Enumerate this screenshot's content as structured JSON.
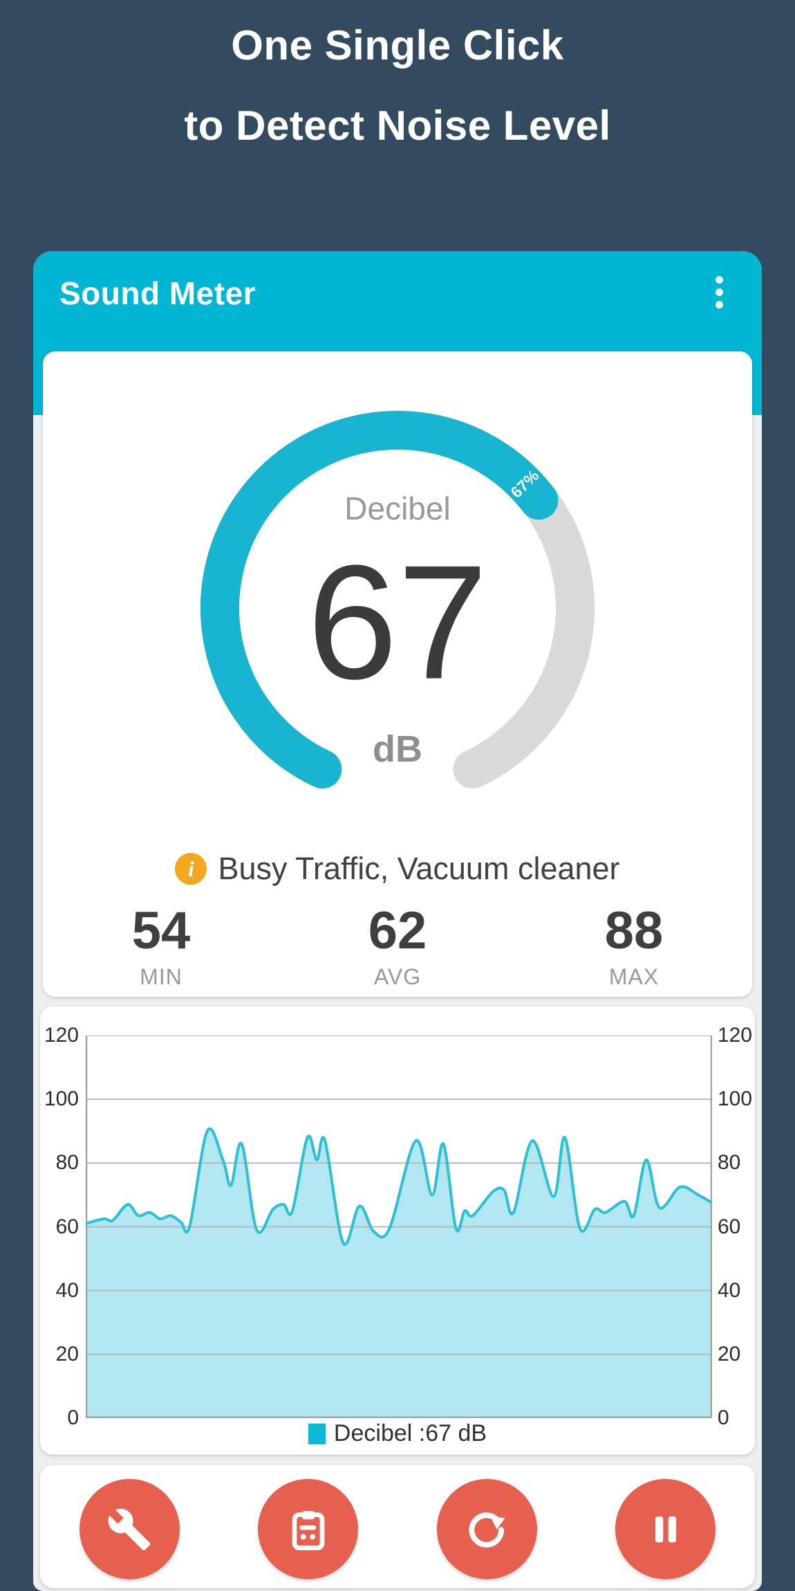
{
  "colors": {
    "page_background": "#344a5e",
    "phone_background": "#edeff0",
    "accent_teal": "#00b6d3",
    "gauge_fill": "#18b4d0",
    "gauge_track": "#d9d9d9",
    "button_red": "#e7604f",
    "info_orange": "#f2a71f",
    "chart_line": "#2cc0d7",
    "chart_fill": "#b2e6f0",
    "legend_swatch": "#0db9d4"
  },
  "hero": {
    "line1": "One Single Click",
    "line2": "to Detect Noise Level"
  },
  "app_bar": {
    "title": "Sound Meter",
    "menu_icon": "kebab-menu-icon"
  },
  "gauge": {
    "label": "Decibel",
    "value": "67",
    "unit": "dB",
    "percent": 67,
    "percent_label": "67%",
    "start_deg": 205,
    "sweep_deg": 310
  },
  "info": {
    "icon": "info-icon",
    "icon_glyph": "i",
    "text": "Busy Traffic, Vacuum cleaner"
  },
  "stats": [
    {
      "value": "54",
      "label": "MIN"
    },
    {
      "value": "62",
      "label": "AVG"
    },
    {
      "value": "88",
      "label": "MAX"
    }
  ],
  "chart_data": {
    "type": "area",
    "title": "",
    "xlabel": "",
    "ylabel": "",
    "ylim": [
      0,
      120
    ],
    "yticks": [
      0,
      20,
      40,
      60,
      80,
      100,
      120
    ],
    "grid": true,
    "dual_axis": true,
    "legend_position": "bottom",
    "legend_label": "Decibel :67 dB",
    "series": [
      {
        "name": "Decibel",
        "unit": "dB",
        "current": 67,
        "points": [
          [
            0,
            61
          ],
          [
            2.9,
            62.5
          ],
          [
            4.3,
            62
          ],
          [
            6.7,
            67
          ],
          [
            8.4,
            63.5
          ],
          [
            10.2,
            64.5
          ],
          [
            11.9,
            62.5
          ],
          [
            13.6,
            63.5
          ],
          [
            15.2,
            61.5
          ],
          [
            16.6,
            60.2
          ],
          [
            19.4,
            90
          ],
          [
            21.9,
            81
          ],
          [
            23.2,
            73
          ],
          [
            24.9,
            86
          ],
          [
            27.3,
            59
          ],
          [
            29.9,
            65.5
          ],
          [
            31.6,
            67
          ],
          [
            33,
            65
          ],
          [
            35.4,
            88
          ],
          [
            36.9,
            81
          ],
          [
            38.2,
            87
          ],
          [
            41.1,
            55
          ],
          [
            43.7,
            66.5
          ],
          [
            46,
            58.5
          ],
          [
            48.5,
            59.5
          ],
          [
            52.7,
            87
          ],
          [
            55.3,
            70
          ],
          [
            57.1,
            86
          ],
          [
            59.1,
            59.5
          ],
          [
            60.5,
            65
          ],
          [
            61.8,
            63.5
          ],
          [
            65,
            71
          ],
          [
            66.8,
            71.5
          ],
          [
            68.3,
            64.5
          ],
          [
            71.3,
            87
          ],
          [
            74.7,
            69.5
          ],
          [
            76.5,
            88
          ],
          [
            78.9,
            59.5
          ],
          [
            81.3,
            65.5
          ],
          [
            83,
            64.5
          ],
          [
            86,
            68
          ],
          [
            87.5,
            63.5
          ],
          [
            89.5,
            81
          ],
          [
            91.6,
            66
          ],
          [
            94.9,
            72.5
          ],
          [
            97.8,
            70
          ],
          [
            100,
            67.5
          ]
        ]
      }
    ]
  },
  "controls": {
    "buttons": [
      {
        "name": "settings-button",
        "icon": "wrench-icon"
      },
      {
        "name": "records-button",
        "icon": "clipboard-icon"
      },
      {
        "name": "reset-button",
        "icon": "redo-icon"
      },
      {
        "name": "pause-button",
        "icon": "pause-icon"
      }
    ]
  }
}
